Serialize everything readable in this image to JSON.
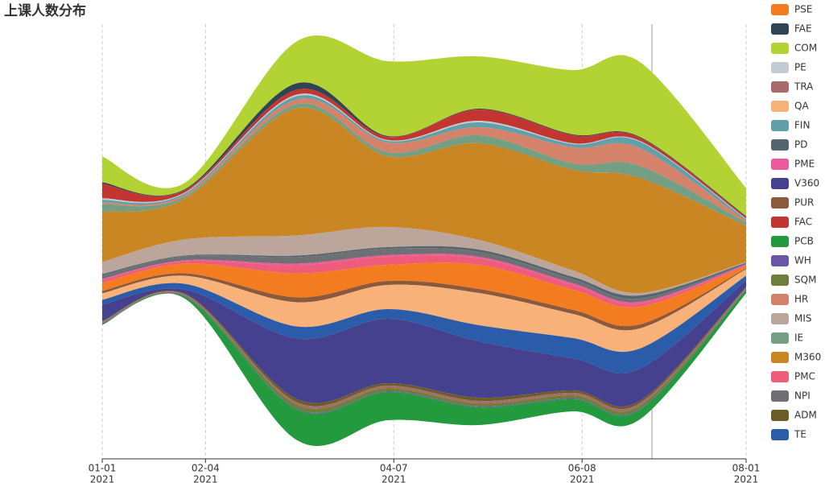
{
  "chart_data": {
    "type": "themeriver",
    "title": "上课人数分布",
    "x": [
      "2021-01-01",
      "2021-01-28",
      "2021-03-06",
      "2021-04-05",
      "2021-05-05",
      "2021-06-05",
      "2021-06-27",
      "2021-08-01"
    ],
    "xlim": [
      "2021-01-01",
      "2021-08-01"
    ],
    "xticks": [
      {
        "value": "2021-01-01",
        "label": "01-01",
        "year": "2021"
      },
      {
        "value": "2021-02-04",
        "label": "02-04",
        "year": "2021"
      },
      {
        "value": "2021-04-07",
        "label": "04-07",
        "year": "2021"
      },
      {
        "value": "2021-06-08",
        "label": "06-08",
        "year": "2021"
      },
      {
        "value": "2021-08-01",
        "label": "08-01",
        "year": "2021"
      }
    ],
    "grid": true,
    "legend": "right",
    "series": [
      {
        "name": "PSE",
        "color": "#f47c20",
        "values": [
          10,
          12,
          30,
          20,
          30,
          25,
          22,
          3
        ]
      },
      {
        "name": "FAE",
        "color": "#2f4554",
        "values": [
          2,
          1,
          8,
          1,
          1,
          1,
          1,
          1
        ]
      },
      {
        "name": "COM",
        "color": "#b3d334",
        "values": [
          32,
          8,
          52,
          93,
          65,
          80,
          93,
          35
        ]
      },
      {
        "name": "PE",
        "color": "#c4ccd3",
        "values": [
          2,
          1,
          2,
          1,
          2,
          1,
          1,
          1
        ]
      },
      {
        "name": "TRA",
        "color": "#a86b6b",
        "values": [
          1,
          1,
          3,
          3,
          3,
          3,
          3,
          1
        ]
      },
      {
        "name": "QA",
        "color": "#f9b17a",
        "values": [
          8,
          10,
          30,
          30,
          40,
          30,
          25,
          8
        ]
      },
      {
        "name": "FIN",
        "color": "#61a0a8",
        "values": [
          3,
          2,
          4,
          2,
          6,
          4,
          8,
          2
        ]
      },
      {
        "name": "PD",
        "color": "#546570",
        "values": [
          2,
          1,
          2,
          2,
          3,
          3,
          4,
          1
        ]
      },
      {
        "name": "PME",
        "color": "#ea5a9c",
        "values": [
          1,
          1,
          2,
          2,
          2,
          2,
          2,
          1
        ]
      },
      {
        "name": "V360",
        "color": "#45418f",
        "values": [
          20,
          5,
          75,
          80,
          70,
          40,
          40,
          8
        ]
      },
      {
        "name": "PUR",
        "color": "#8b5a3c",
        "values": [
          3,
          3,
          6,
          5,
          5,
          5,
          5,
          1
        ]
      },
      {
        "name": "FAC",
        "color": "#c23531",
        "values": [
          18,
          3,
          6,
          4,
          14,
          10,
          4,
          2
        ]
      },
      {
        "name": "PCB",
        "color": "#229a3d",
        "values": [
          1,
          2,
          38,
          35,
          22,
          15,
          12,
          4
        ]
      },
      {
        "name": "WH",
        "color": "#6a55a6",
        "values": [
          1,
          1,
          1,
          1,
          1,
          1,
          1,
          1
        ]
      },
      {
        "name": "SQM",
        "color": "#6e7f3a",
        "values": [
          1,
          1,
          5,
          4,
          4,
          4,
          4,
          1
        ]
      },
      {
        "name": "HR",
        "color": "#d4826a",
        "values": [
          2,
          2,
          6,
          12,
          10,
          20,
          22,
          2
        ]
      },
      {
        "name": "MIS",
        "color": "#bca59b",
        "values": [
          15,
          20,
          25,
          25,
          12,
          8,
          3,
          1
        ]
      },
      {
        "name": "IE",
        "color": "#749f83",
        "values": [
          10,
          3,
          5,
          5,
          10,
          8,
          15,
          4
        ]
      },
      {
        "name": "M360",
        "color": "#ca8622",
        "values": [
          62,
          50,
          158,
          88,
          120,
          125,
          143,
          45
        ]
      },
      {
        "name": "PMC",
        "color": "#ef5b7a",
        "values": [
          4,
          3,
          10,
          10,
          8,
          6,
          4,
          1
        ]
      },
      {
        "name": "NPI",
        "color": "#6e7074",
        "values": [
          4,
          5,
          8,
          8,
          6,
          5,
          4,
          1
        ]
      },
      {
        "name": "ADM",
        "color": "#6b5d2a",
        "values": [
          1,
          1,
          4,
          3,
          4,
          3,
          3,
          1
        ]
      },
      {
        "name": "TE",
        "color": "#2a5caa",
        "values": [
          6,
          7,
          15,
          12,
          20,
          25,
          25,
          6
        ]
      }
    ]
  }
}
